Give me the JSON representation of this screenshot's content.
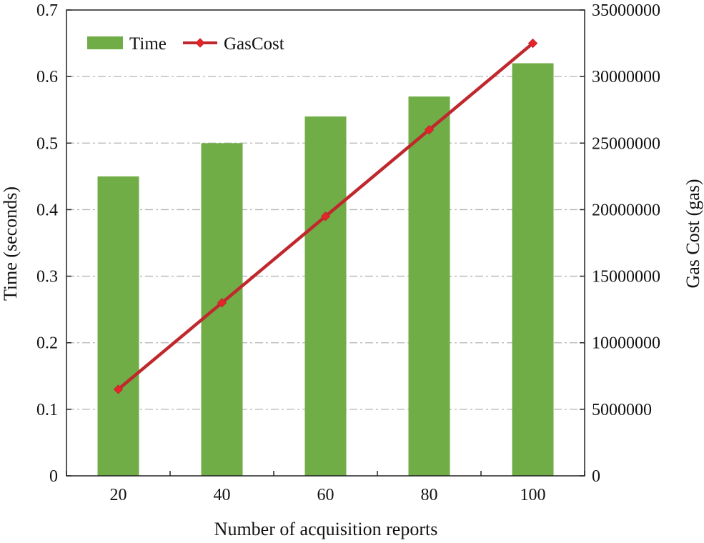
{
  "chart_data": {
    "type": "bar",
    "title": "",
    "xlabel": "Number of acquisition reports",
    "ylabel": "Time (seconds)",
    "y2label": "Gas Cost (gas)",
    "categories": [
      "20",
      "40",
      "60",
      "80",
      "100"
    ],
    "ylim": [
      0,
      0.7
    ],
    "yticks": [
      "0",
      "0.1",
      "0.2",
      "0.3",
      "0.4",
      "0.5",
      "0.6",
      "0.7"
    ],
    "y2lim": [
      0,
      35000000
    ],
    "y2ticks": [
      "0",
      "5000000",
      "10000000",
      "15000000",
      "20000000",
      "25000000",
      "30000000",
      "35000000"
    ],
    "grid": true,
    "legend_position": "top-left",
    "series": [
      {
        "name": "Time",
        "type": "bar",
        "axis": "left",
        "color": "#70ad47",
        "values": [
          0.45,
          0.5,
          0.54,
          0.57,
          0.62
        ]
      },
      {
        "name": "GasCost",
        "type": "line",
        "axis": "right",
        "color": "#c0282d",
        "marker_color": "#e8242b",
        "values": [
          6500000,
          13000000,
          19500000,
          26000000,
          32500000
        ]
      }
    ]
  }
}
